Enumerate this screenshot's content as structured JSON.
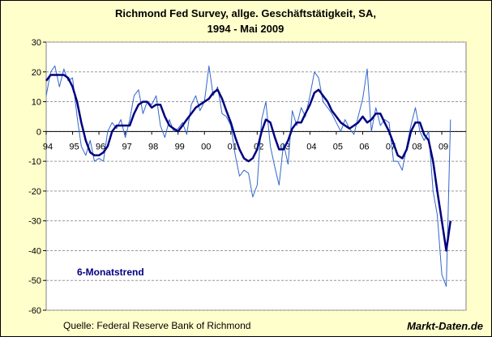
{
  "chart_data": {
    "type": "line",
    "title": "Richmond Fed Survey, allge. Geschäftstätigkeit, SA,",
    "subtitle": "1994 - Mai 2009",
    "source": "Quelle: Federal Reserve Bank of Richmond",
    "brand": "Markt-Daten.de",
    "x": [
      1994,
      1994.17,
      1994.33,
      1994.5,
      1994.67,
      1994.83,
      1995,
      1995.17,
      1995.33,
      1995.5,
      1995.67,
      1995.83,
      1996,
      1996.17,
      1996.33,
      1996.5,
      1996.67,
      1996.83,
      1997,
      1997.17,
      1997.33,
      1997.5,
      1997.67,
      1997.83,
      1998,
      1998.17,
      1998.33,
      1998.5,
      1998.67,
      1998.83,
      1999,
      1999.17,
      1999.33,
      1999.5,
      1999.67,
      1999.83,
      2000,
      2000.17,
      2000.33,
      2000.5,
      2000.67,
      2000.83,
      2001,
      2001.17,
      2001.33,
      2001.5,
      2001.67,
      2001.83,
      2002,
      2002.17,
      2002.33,
      2002.5,
      2002.67,
      2002.83,
      2003,
      2003.17,
      2003.33,
      2003.5,
      2003.67,
      2003.83,
      2004,
      2004.17,
      2004.33,
      2004.5,
      2004.67,
      2004.83,
      2005,
      2005.17,
      2005.33,
      2005.5,
      2005.67,
      2005.83,
      2006,
      2006.17,
      2006.33,
      2006.5,
      2006.67,
      2006.83,
      2007,
      2007.17,
      2007.33,
      2007.5,
      2007.67,
      2007.83,
      2008,
      2008.17,
      2008.33,
      2008.5,
      2008.67,
      2008.83,
      2009,
      2009.17,
      2009.33
    ],
    "series": [
      {
        "color": "#3366cc",
        "values": [
          12,
          20,
          22,
          15,
          21,
          17,
          18,
          5,
          -5,
          -8,
          -3,
          -10,
          -9,
          -10,
          0,
          3,
          1,
          4,
          -2,
          4,
          12,
          14,
          6,
          10,
          9,
          12,
          2,
          -2,
          4,
          0,
          1,
          3,
          -1,
          9,
          12,
          7,
          10,
          22,
          12,
          15,
          6,
          5,
          2,
          -8,
          -15,
          -13,
          -14,
          -22,
          -18,
          4,
          10,
          -5,
          -12,
          -18,
          -4,
          -11,
          7,
          2,
          8,
          5,
          12,
          20,
          18,
          10,
          8,
          6,
          3,
          0,
          4,
          1,
          -1,
          5,
          11,
          21,
          0,
          8,
          2,
          4,
          3,
          -10,
          -10,
          -13,
          -5,
          2,
          8,
          0,
          -3,
          0,
          -20,
          -28,
          -48,
          -52,
          4
        ]
      },
      {
        "name": "6-Monatstrend",
        "color": "#000080",
        "values": [
          17,
          19,
          19,
          19,
          19,
          18,
          15,
          10,
          3,
          -3,
          -7,
          -8,
          -8,
          -7,
          -5,
          0,
          2,
          2,
          2,
          2,
          6,
          9,
          10,
          10,
          8,
          9,
          9,
          5,
          2,
          1,
          0,
          2,
          4,
          6,
          8,
          9,
          10,
          11,
          13,
          14,
          11,
          7,
          3,
          -2,
          -6,
          -9,
          -10,
          -9,
          -6,
          0,
          4,
          3,
          -2,
          -6,
          -6,
          -3,
          1,
          3,
          3,
          6,
          9,
          13,
          14,
          12,
          10,
          7,
          5,
          3,
          2,
          1,
          2,
          3,
          5,
          3,
          4,
          6,
          6,
          3,
          0,
          -4,
          -8,
          -9,
          -6,
          0,
          3,
          3,
          -1,
          -3,
          -10,
          -20,
          -30,
          -40,
          -30
        ]
      }
    ],
    "xlim": [
      1994,
      2009.92
    ],
    "xticks": [
      {
        "value": 1994,
        "label": "94"
      },
      {
        "value": 1995,
        "label": "95"
      },
      {
        "value": 1996,
        "label": "96"
      },
      {
        "value": 1997,
        "label": "97"
      },
      {
        "value": 1998,
        "label": "98"
      },
      {
        "value": 1999,
        "label": "99"
      },
      {
        "value": 2000,
        "label": "00"
      },
      {
        "value": 2001,
        "label": "01"
      },
      {
        "value": 2002,
        "label": "02"
      },
      {
        "value": 2003,
        "label": "03"
      },
      {
        "value": 2004,
        "label": "04"
      },
      {
        "value": 2005,
        "label": "05"
      },
      {
        "value": 2006,
        "label": "06"
      },
      {
        "value": 2007,
        "label": "07"
      },
      {
        "value": 2008,
        "label": "08"
      },
      {
        "value": 2009,
        "label": "09"
      }
    ],
    "ylim": [
      -60,
      30
    ],
    "yticks": [
      30,
      20,
      10,
      0,
      -10,
      -20,
      -30,
      -40,
      -50,
      -60
    ],
    "grid": true
  }
}
